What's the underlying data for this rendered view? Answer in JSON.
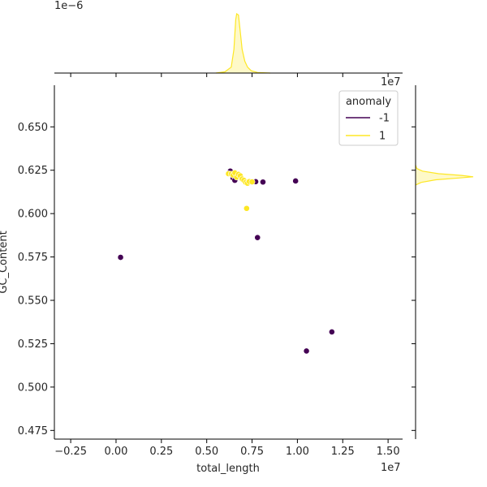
{
  "chart_data": {
    "type": "scatter",
    "xlabel": "total_length",
    "ylabel": "GC_Content",
    "x_offset_label": "1e7",
    "top_marginal_offset_label": "1e−6",
    "right_marginal_offset_label": "1e7",
    "xlim": [
      -3400000,
      15800000
    ],
    "ylim": [
      0.47,
      0.674
    ],
    "x_ticks": [
      -2500000,
      0,
      2500000,
      5000000,
      7500000,
      10000000,
      12500000,
      15000000
    ],
    "x_tick_labels": [
      "−0.25",
      "0.00",
      "0.25",
      "0.50",
      "0.75",
      "1.00",
      "1.25",
      "1.50"
    ],
    "y_ticks": [
      0.475,
      0.5,
      0.525,
      0.55,
      0.575,
      0.6,
      0.625,
      0.65
    ],
    "y_tick_labels": [
      "0.475",
      "0.500",
      "0.525",
      "0.550",
      "0.575",
      "0.600",
      "0.625",
      "0.650"
    ],
    "legend": {
      "title": "anomaly",
      "position": "top-right",
      "entries": [
        {
          "label": "-1",
          "color": "#440154"
        },
        {
          "label": "1",
          "color": "#fde725"
        }
      ]
    },
    "series": [
      {
        "name": "-1",
        "color": "#440154",
        "points": [
          [
            250000,
            0.5748
          ],
          [
            6300000,
            0.6245
          ],
          [
            6450000,
            0.6205
          ],
          [
            6550000,
            0.6192
          ],
          [
            7700000,
            0.6184
          ],
          [
            8100000,
            0.6182
          ],
          [
            9900000,
            0.6188
          ],
          [
            7800000,
            0.5862
          ],
          [
            10500000,
            0.5208
          ],
          [
            11900000,
            0.5318
          ]
        ]
      },
      {
        "name": "1",
        "color": "#fde725",
        "points": [
          [
            6200000,
            0.623
          ],
          [
            6350000,
            0.6228
          ],
          [
            6450000,
            0.6222
          ],
          [
            6550000,
            0.6235
          ],
          [
            6650000,
            0.621
          ],
          [
            6750000,
            0.6226
          ],
          [
            6850000,
            0.6218
          ],
          [
            6950000,
            0.62
          ],
          [
            7050000,
            0.6192
          ],
          [
            7150000,
            0.618
          ],
          [
            7250000,
            0.6175
          ],
          [
            7350000,
            0.6185
          ],
          [
            7500000,
            0.6183
          ],
          [
            7200000,
            0.603
          ]
        ]
      }
    ],
    "marginals": {
      "x_kde": {
        "color": "#fde725",
        "points": [
          [
            5500000,
            0
          ],
          [
            6000000,
            0.02
          ],
          [
            6350000,
            0.1
          ],
          [
            6500000,
            0.4
          ],
          [
            6600000,
            0.9
          ],
          [
            6650000,
            1.0
          ],
          [
            6750000,
            0.98
          ],
          [
            6850000,
            0.7
          ],
          [
            6950000,
            0.4
          ],
          [
            7100000,
            0.2
          ],
          [
            7250000,
            0.1
          ],
          [
            7450000,
            0.04
          ],
          [
            7800000,
            0.01
          ],
          [
            8500000,
            0
          ]
        ]
      },
      "y_kde": {
        "color": "#fde725",
        "points": [
          [
            0.6165,
            0
          ],
          [
            0.618,
            0.1
          ],
          [
            0.6195,
            0.35
          ],
          [
            0.6205,
            0.75
          ],
          [
            0.6212,
            1.0
          ],
          [
            0.622,
            0.8
          ],
          [
            0.623,
            0.4
          ],
          [
            0.6245,
            0.12
          ],
          [
            0.626,
            0.02
          ],
          [
            0.628,
            0
          ]
        ]
      }
    }
  }
}
